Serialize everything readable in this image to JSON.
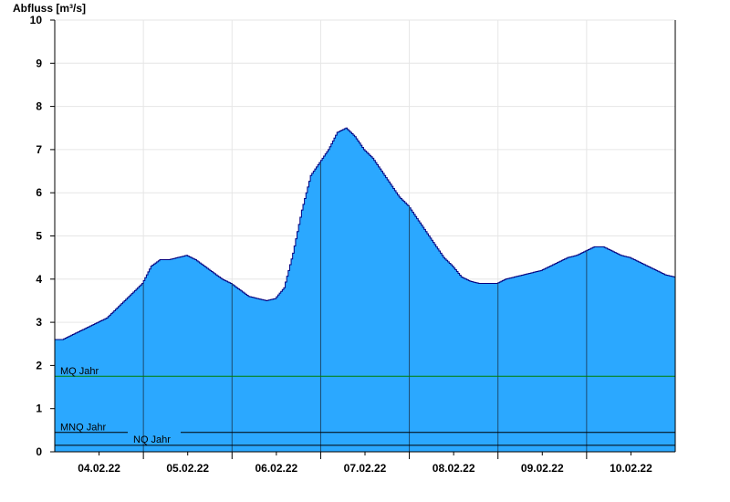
{
  "chart_data": {
    "type": "area",
    "title": "",
    "ylabel": "Abfluss [m³/s]",
    "xlabel": "",
    "ylim": [
      0,
      10
    ],
    "yticks": [
      0,
      1,
      2,
      3,
      4,
      5,
      6,
      7,
      8,
      9,
      10
    ],
    "xlim": [
      3.5,
      10.5
    ],
    "day_lines": [
      4.5,
      5.5,
      6.5,
      7.5,
      8.5,
      9.5
    ],
    "xtick_positions": [
      4.0,
      4.5,
      5.0,
      5.5,
      6.0,
      6.5,
      7.0,
      7.5,
      8.0,
      8.5,
      9.0,
      9.5,
      10.0
    ],
    "categories": [
      "04.02.22",
      "05.02.22",
      "06.02.22",
      "07.02.22",
      "08.02.22",
      "09.02.22",
      "10.02.22"
    ],
    "category_positions": [
      4.0,
      5.0,
      6.0,
      7.0,
      8.0,
      9.0,
      10.0
    ],
    "grid": true,
    "fill_color": "#2ba8ff",
    "line_color": "#00007f",
    "series": [
      {
        "x": [
          3.5,
          3.6,
          3.7,
          3.8,
          3.9,
          4.0,
          4.1,
          4.2,
          4.3,
          4.4,
          4.5,
          4.6,
          4.7,
          4.8,
          4.9,
          5.0,
          5.1,
          5.2,
          5.3,
          5.4,
          5.5,
          5.6,
          5.7,
          5.8,
          5.9,
          6.0,
          6.1,
          6.2,
          6.3,
          6.4,
          6.5,
          6.6,
          6.7,
          6.8,
          6.9,
          7.0,
          7.1,
          7.2,
          7.3,
          7.4,
          7.5,
          7.6,
          7.7,
          7.8,
          7.9,
          8.0,
          8.1,
          8.2,
          8.3,
          8.4,
          8.5,
          8.6,
          8.7,
          8.8,
          8.9,
          9.0,
          9.1,
          9.2,
          9.3,
          9.4,
          9.5,
          9.6,
          9.7,
          9.8,
          9.9,
          10.0,
          10.1,
          10.2,
          10.3,
          10.4,
          10.5
        ],
        "values": [
          2.6,
          2.6,
          2.7,
          2.8,
          2.9,
          3.0,
          3.1,
          3.3,
          3.5,
          3.7,
          3.9,
          4.3,
          4.45,
          4.45,
          4.5,
          4.55,
          4.45,
          4.3,
          4.15,
          4.0,
          3.9,
          3.75,
          3.6,
          3.55,
          3.5,
          3.55,
          3.8,
          4.6,
          5.6,
          6.4,
          6.7,
          7.0,
          7.4,
          7.5,
          7.3,
          7.0,
          6.8,
          6.5,
          6.2,
          5.9,
          5.7,
          5.4,
          5.1,
          4.8,
          4.5,
          4.3,
          4.05,
          3.95,
          3.9,
          3.9,
          3.9,
          4.0,
          4.05,
          4.1,
          4.15,
          4.2,
          4.3,
          4.4,
          4.5,
          4.55,
          4.65,
          4.75,
          4.75,
          4.65,
          4.55,
          4.5,
          4.4,
          4.3,
          4.2,
          4.1,
          4.05
        ]
      }
    ],
    "reference_lines": [
      {
        "name": "MQ Jahr",
        "value": 1.75,
        "color": "#008000"
      },
      {
        "name": "MNQ Jahr",
        "value": 0.45,
        "color": "#000000"
      },
      {
        "name": "NQ Jahr",
        "value": 0.15,
        "color": "#000000"
      }
    ]
  }
}
